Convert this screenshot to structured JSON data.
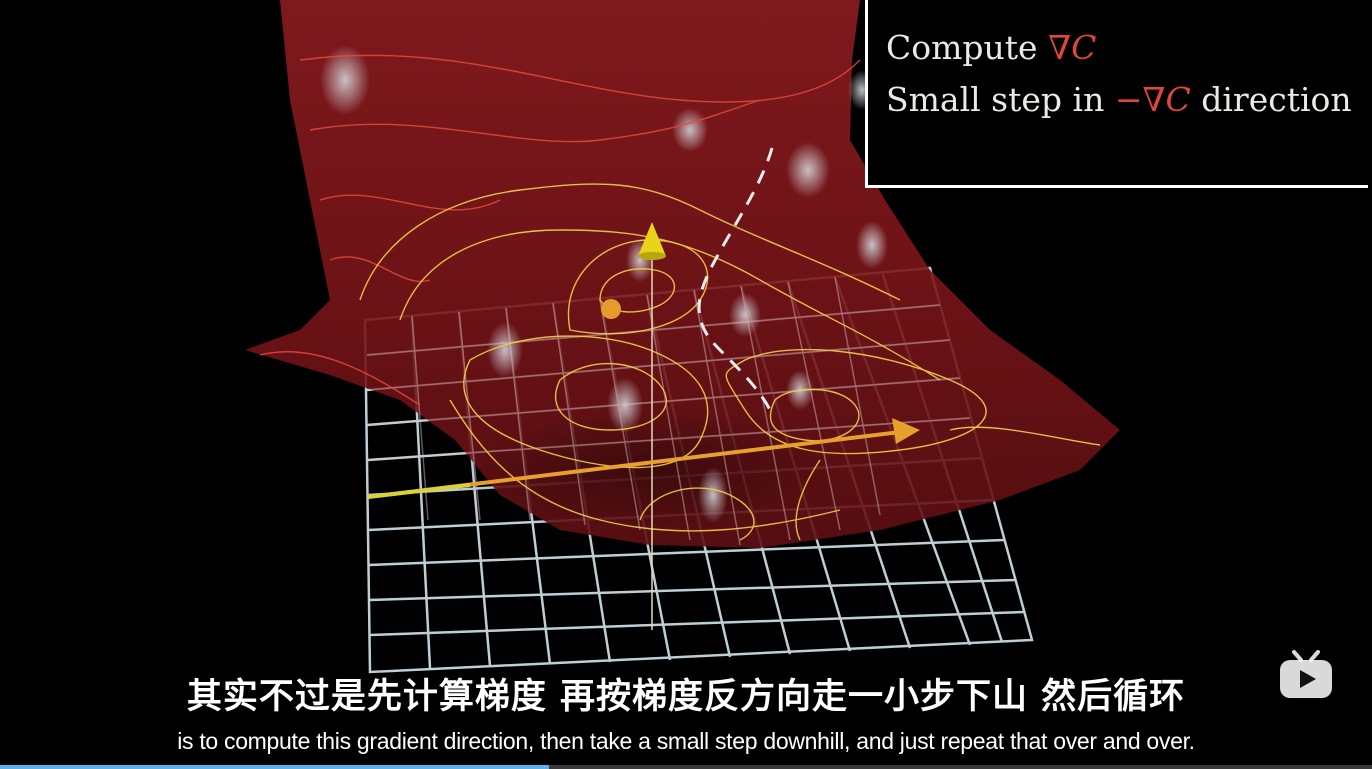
{
  "algorithm": {
    "line1_prefix": "Compute ",
    "line1_math": "∇C",
    "line2_prefix": "Small step in ",
    "line2_math": "−∇C",
    "line2_suffix": " direction"
  },
  "subtitles": {
    "chinese": "其实不过是先计算梯度 再按梯度反方向走一小步下山 然后循环",
    "english": "is to compute this gradient direction, then take a small step downhill, and just repeat that over and over."
  },
  "player": {
    "logo_icon": "bilibili-tv-icon",
    "progress": 0.4
  },
  "colors": {
    "surface": "#7a1418",
    "contour": "#f2d04a",
    "arrow_yellow": "#e8d21a",
    "arrow_orange": "#e89a2a",
    "grid": "#c8dbe0",
    "math_red": "#e0453c"
  }
}
